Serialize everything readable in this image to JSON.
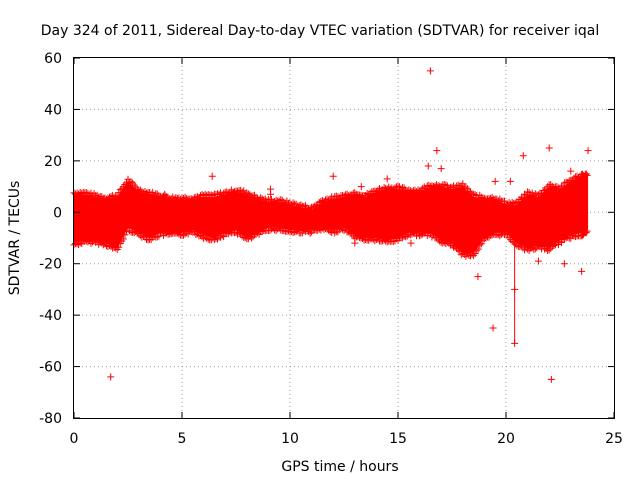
{
  "chart_data": {
    "type": "scatter",
    "title": "Day 324 of 2011, Sidereal Day-to-day VTEC variation (SDTVAR) for receiver iqal",
    "xlabel": "GPS time / hours",
    "ylabel": "SDTVAR / TECUs",
    "xlim": [
      0,
      25
    ],
    "ylim": [
      -80,
      60
    ],
    "xticks": [
      "0",
      "5",
      "10",
      "15",
      "20",
      "25"
    ],
    "yticks": [
      "-80",
      "-60",
      "-40",
      "-20",
      "0",
      "20",
      "40",
      "60"
    ],
    "grid": true,
    "marker": "+",
    "color": "#ff0000",
    "series": [
      {
        "name": "SDTVAR",
        "dense_band": {
          "x": [
            0.0,
            0.5,
            1.0,
            1.5,
            2.0,
            2.5,
            3.0,
            3.5,
            4.0,
            4.5,
            5.0,
            5.5,
            6.0,
            6.5,
            7.0,
            7.5,
            8.0,
            8.5,
            9.0,
            9.5,
            10.0,
            10.5,
            11.0,
            11.5,
            12.0,
            12.5,
            13.0,
            13.5,
            14.0,
            14.5,
            15.0,
            15.5,
            16.0,
            16.5,
            17.0,
            17.5,
            18.0,
            18.5,
            19.0,
            19.5,
            20.0,
            20.5,
            21.0,
            21.5,
            22.0,
            22.5,
            23.0,
            23.5,
            23.8
          ],
          "upper": [
            7,
            7,
            6,
            5,
            6,
            12,
            8,
            7,
            6,
            5,
            5,
            5,
            6,
            6,
            7,
            8,
            7,
            5,
            4,
            4,
            3,
            2,
            1,
            4,
            5,
            6,
            7,
            6,
            8,
            9,
            9,
            8,
            8,
            10,
            10,
            9,
            10,
            6,
            5,
            5,
            3,
            3,
            7,
            6,
            10,
            9,
            12,
            14,
            14
          ],
          "lower": [
            -12,
            -11,
            -11,
            -12,
            -14,
            -6,
            -8,
            -10,
            -8,
            -8,
            -8,
            -7,
            -9,
            -10,
            -8,
            -7,
            -10,
            -8,
            -6,
            -6,
            -7,
            -7,
            -7,
            -6,
            -7,
            -6,
            -9,
            -10,
            -10,
            -11,
            -10,
            -8,
            -8,
            -8,
            -11,
            -12,
            -16,
            -16,
            -10,
            -8,
            -8,
            -12,
            -14,
            -13,
            -14,
            -11,
            -9,
            -8,
            -7
          ]
        },
        "outliers": [
          {
            "x": 16.5,
            "y": 55
          },
          {
            "x": 1.7,
            "y": -64
          },
          {
            "x": 22.1,
            "y": -65
          },
          {
            "x": 19.4,
            "y": -45
          },
          {
            "x": 20.4,
            "y": -51
          },
          {
            "x": 20.4,
            "y": -30
          },
          {
            "x": 18.7,
            "y": -25
          },
          {
            "x": 23.5,
            "y": -23
          },
          {
            "x": 22.7,
            "y": -20
          },
          {
            "x": 22.0,
            "y": 25
          },
          {
            "x": 20.8,
            "y": 22
          },
          {
            "x": 23.8,
            "y": 24
          },
          {
            "x": 16.8,
            "y": 24
          },
          {
            "x": 16.4,
            "y": 18
          },
          {
            "x": 12.0,
            "y": 14
          },
          {
            "x": 6.4,
            "y": 14
          },
          {
            "x": 23.0,
            "y": 16
          },
          {
            "x": 9.1,
            "y": 9
          },
          {
            "x": 9.1,
            "y": 7
          },
          {
            "x": 13.3,
            "y": 10
          },
          {
            "x": 14.5,
            "y": 13
          },
          {
            "x": 15.6,
            "y": -12
          },
          {
            "x": 13.0,
            "y": -12
          },
          {
            "x": 4.2,
            "y": 7
          },
          {
            "x": 17.0,
            "y": 17
          },
          {
            "x": 21.5,
            "y": -19
          },
          {
            "x": 20.2,
            "y": 12
          },
          {
            "x": 19.5,
            "y": 12
          },
          {
            "x": 17.3,
            "y": -10
          }
        ],
        "error_bar": {
          "x": 20.4,
          "y_low": -51,
          "y_high": -9
        }
      }
    ]
  }
}
